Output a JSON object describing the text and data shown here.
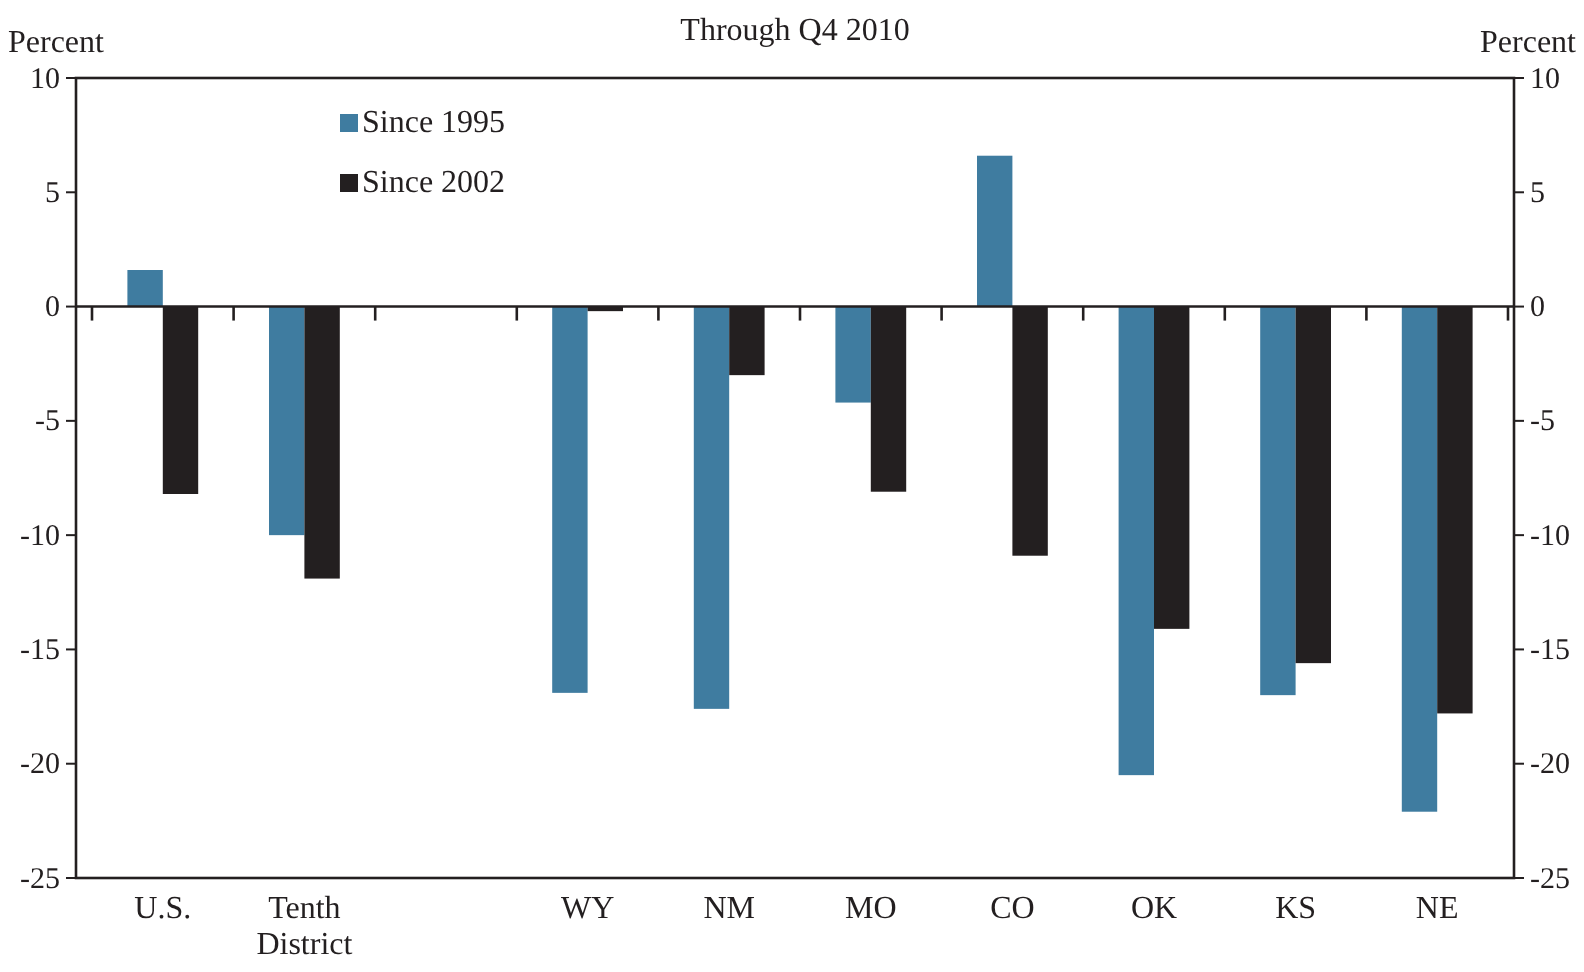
{
  "chart_data": {
    "type": "bar",
    "title": "Through Q4 2010",
    "ylabel": "Percent",
    "y2label": "Percent",
    "categories": [
      "U.S.",
      "Tenth District",
      null,
      "WY",
      "NM",
      "MO",
      "CO",
      "OK",
      "KS",
      "NE"
    ],
    "series": [
      {
        "name": "Since 1995",
        "color": "#3f7ca0",
        "values": [
          1.6,
          -10.0,
          null,
          -16.9,
          -17.6,
          -4.2,
          6.6,
          -20.5,
          -17.0,
          -22.1
        ]
      },
      {
        "name": "Since 2002",
        "color": "#231f20",
        "values": [
          -8.2,
          -11.9,
          null,
          -0.2,
          -3.0,
          -8.1,
          -10.9,
          -14.1,
          -15.6,
          -17.8
        ]
      }
    ],
    "ylim": [
      -25,
      10
    ],
    "yticks": [
      -25,
      -20,
      -15,
      -10,
      -5,
      0,
      5,
      10
    ],
    "y2lim": [
      -25,
      10
    ],
    "y2ticks": [
      -25,
      -20,
      -15,
      -10,
      -5,
      0,
      5,
      10
    ],
    "legend": "top left"
  }
}
